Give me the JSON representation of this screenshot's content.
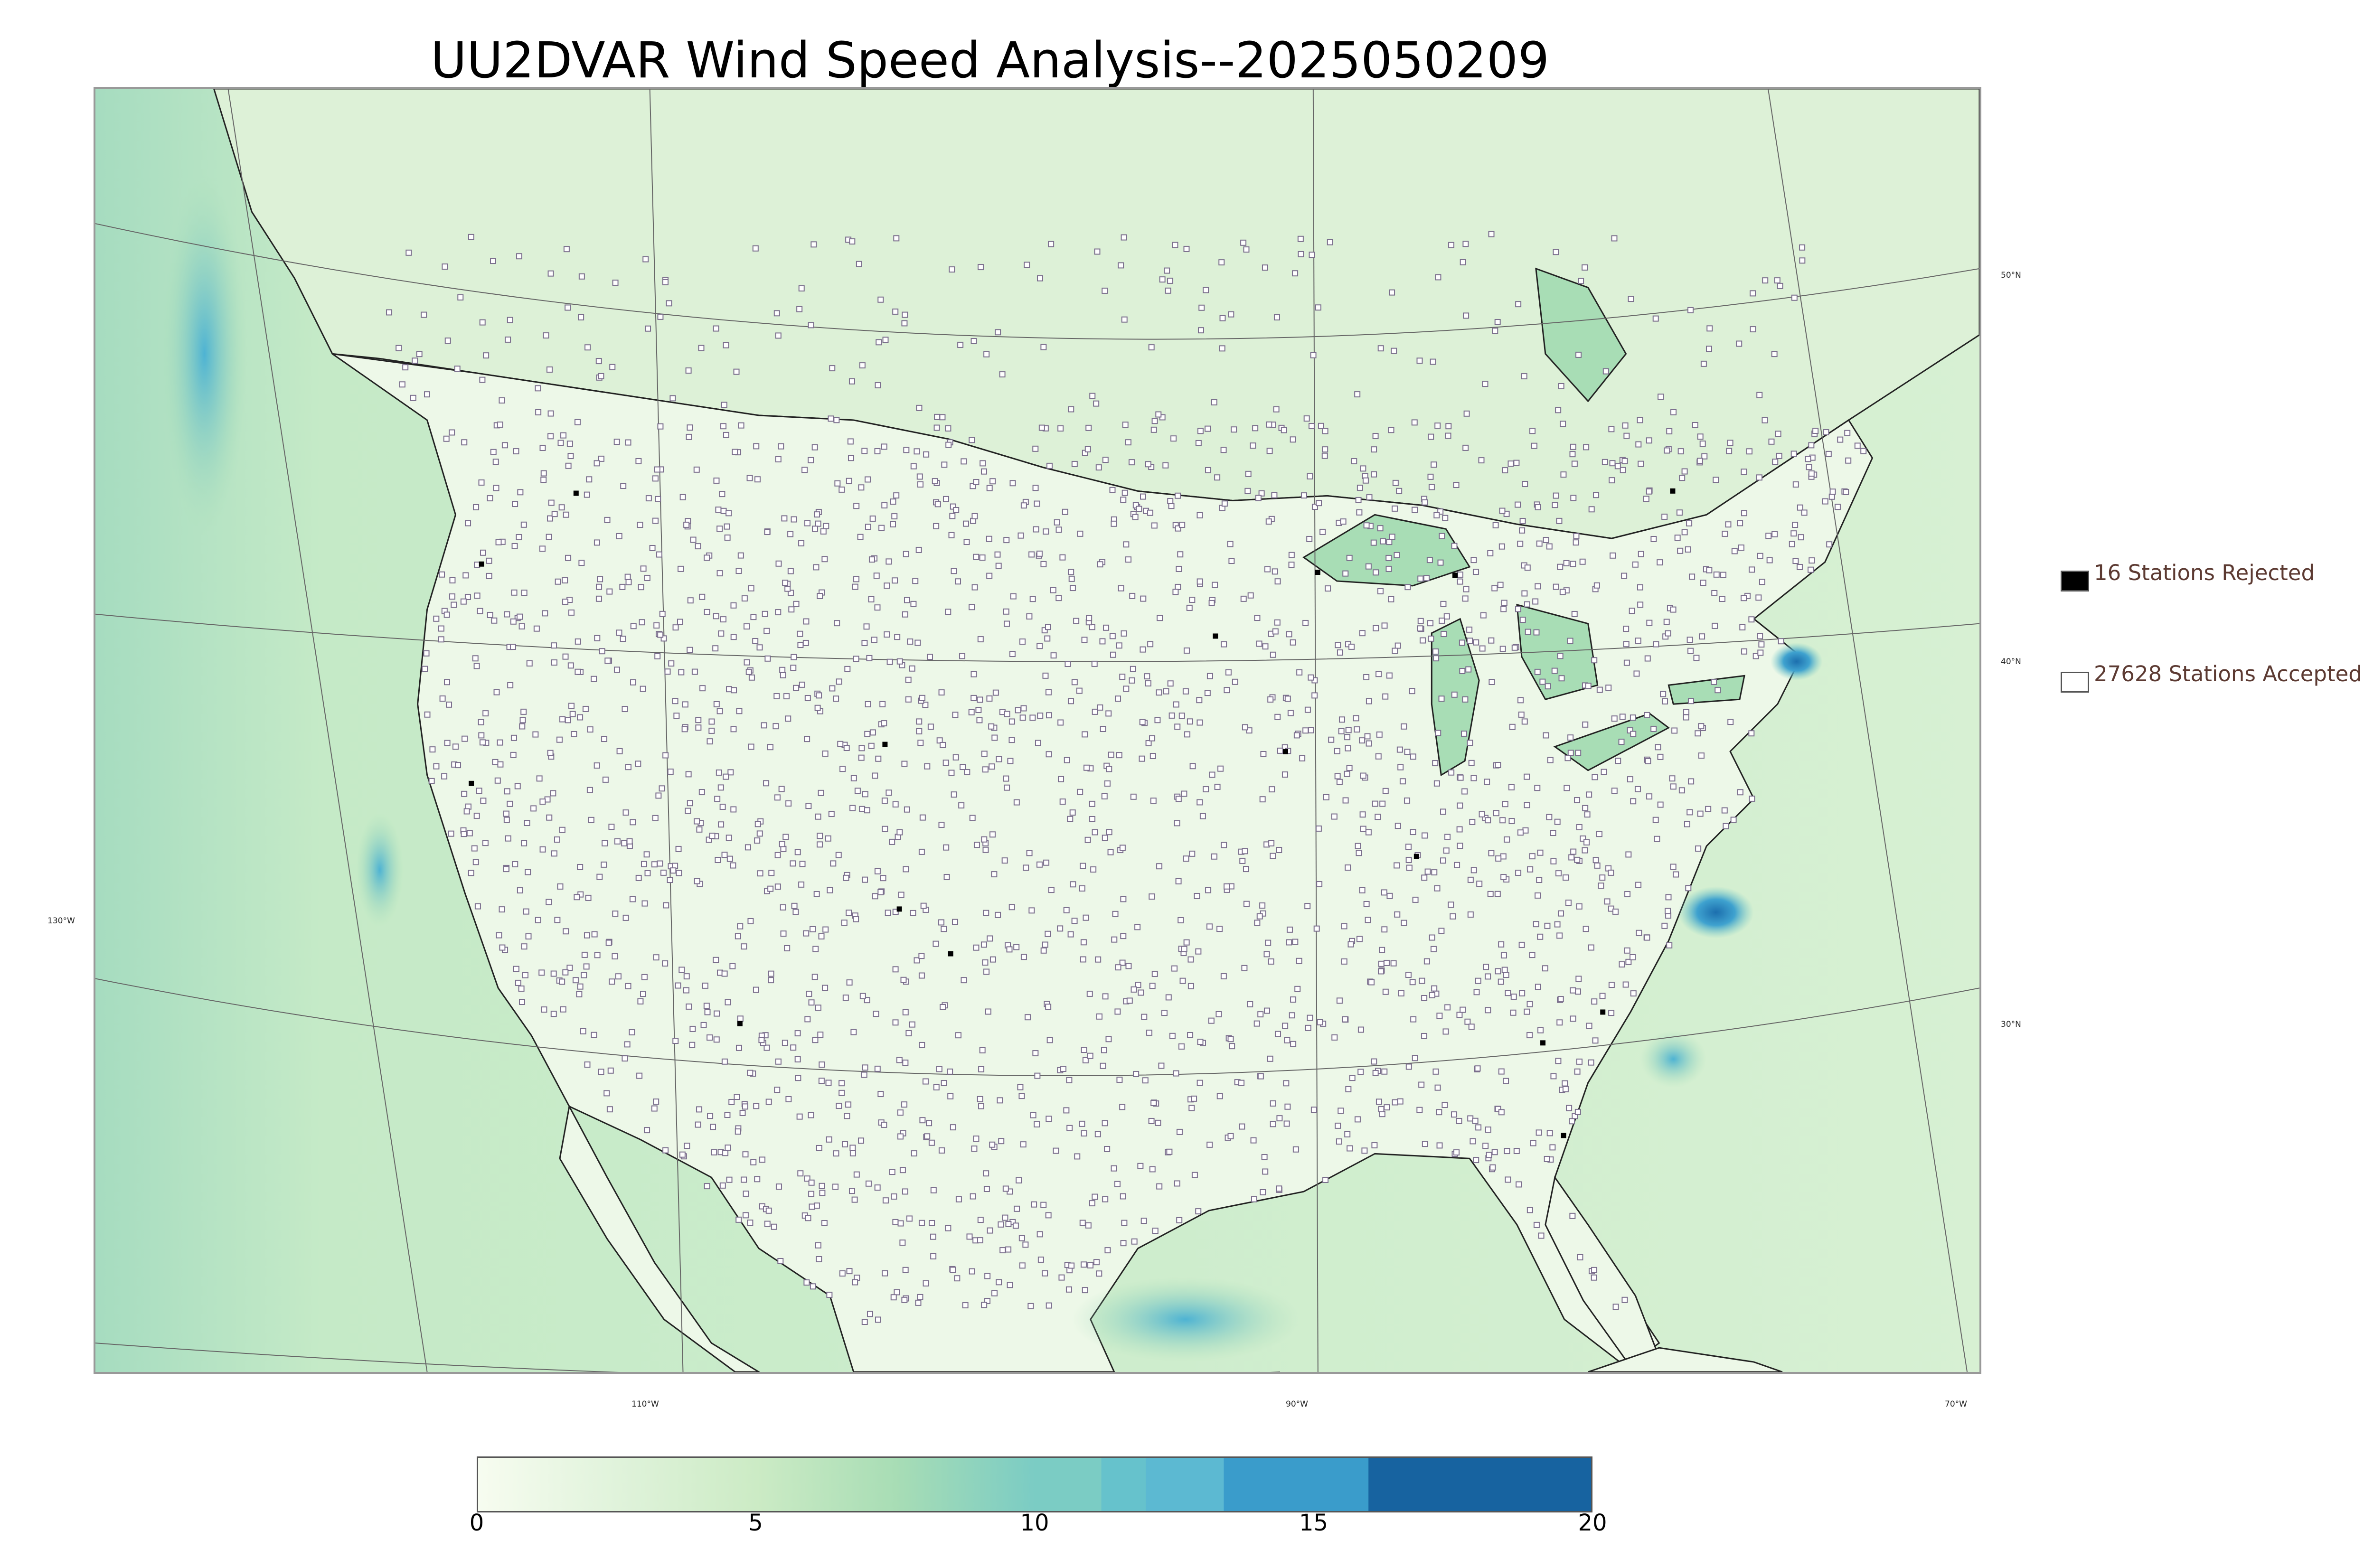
{
  "title": "UU2DVAR Wind Speed Analysis--2025050209",
  "legend": {
    "rejected_label": "16 Stations Rejected",
    "accepted_label": "27628 Stations Accepted",
    "rejected_color": "#000000",
    "accepted_color": "#ffffff"
  },
  "graticule": {
    "lat_labels": [
      "50°N",
      "40°N",
      "30°N"
    ],
    "lon_labels": [
      "130°W",
      "110°W",
      "90°W",
      "70°W"
    ]
  },
  "colorbar": {
    "ticks": [
      "0",
      "5",
      "10",
      "15",
      "20"
    ],
    "min": 0,
    "max": 20,
    "colors": [
      "#f7fcf0",
      "#e0f3db",
      "#ccebc5",
      "#a8ddb5",
      "#7bccc4",
      "#4eb3d3",
      "#2b8cbe",
      "#0868ac"
    ]
  },
  "map": {
    "ocean_color": "#c8ebc8",
    "land_color": "#eef8ea",
    "station_color": "#7a6e8c"
  }
}
